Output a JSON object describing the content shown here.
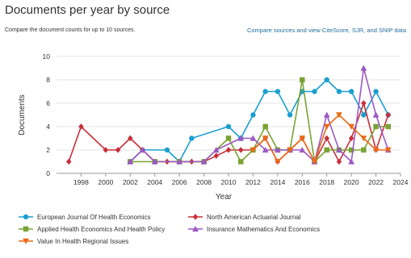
{
  "header": {
    "title": "Documents per year by source",
    "subtitle": "Compare the document counts for up to 10 sources.",
    "compare_link": "Compare sources and view CiteScore, SJR, and SNIP data"
  },
  "chart_data": {
    "type": "line",
    "xlabel": "Year",
    "ylabel": "Documents",
    "xlim": [
      1996,
      2024
    ],
    "ylim": [
      0,
      10
    ],
    "x_ticks": [
      "1998",
      "2000",
      "2002",
      "2004",
      "2006",
      "2008",
      "2010",
      "2012",
      "2014",
      "2016",
      "2018",
      "2020",
      "2022",
      "2024"
    ],
    "y_ticks": [
      "0",
      "2",
      "4",
      "6",
      "8",
      "10"
    ],
    "grid": true,
    "legend_position": "bottom",
    "series": [
      {
        "name": "European Journal Of Health Economics",
        "color": "#1b9fd0",
        "marker": "circle",
        "x": [
          2002,
          2003,
          2005,
          2006,
          2007,
          2010,
          2011,
          2012,
          2013,
          2014,
          2015,
          2016,
          2017,
          2018,
          2019,
          2020,
          2021,
          2022,
          2023
        ],
        "y": [
          1,
          2,
          2,
          1,
          3,
          4,
          3,
          5,
          7,
          7,
          5,
          7,
          7,
          8,
          7,
          7,
          5,
          7,
          5
        ]
      },
      {
        "name": "North American Actuarial Journal",
        "color": "#c8303a",
        "marker": "diamond",
        "x": [
          1997,
          1998,
          2000,
          2001,
          2002,
          2003,
          2004,
          2005,
          2006,
          2007,
          2008,
          2009,
          2010,
          2011,
          2012,
          2013,
          2014,
          2015,
          2016,
          2017,
          2018,
          2019,
          2020,
          2021,
          2022,
          2023
        ],
        "y": [
          1,
          4,
          2,
          2,
          3,
          2,
          1,
          1,
          1,
          1,
          1,
          1.5,
          2,
          2,
          2,
          3,
          1,
          2,
          3,
          1,
          3,
          1,
          3,
          6,
          2,
          5
        ]
      },
      {
        "name": "Applied Health Economics And Health Policy",
        "color": "#7aa335",
        "marker": "square",
        "x": [
          2002,
          2004,
          2006,
          2008,
          2010,
          2011,
          2012,
          2013,
          2014,
          2015,
          2016,
          2017,
          2018,
          2019,
          2020,
          2021,
          2022,
          2023
        ],
        "y": [
          1,
          1,
          1,
          1,
          3,
          1,
          2,
          4,
          2,
          2,
          8,
          1,
          2,
          2,
          2,
          2,
          4,
          4
        ]
      },
      {
        "name": "Insurance Mathematics And Economics",
        "color": "#9b59c4",
        "marker": "triangle",
        "x": [
          2002,
          2003,
          2004,
          2006,
          2008,
          2009,
          2011,
          2012,
          2013,
          2014,
          2015,
          2016,
          2017,
          2018,
          2019,
          2020,
          2021,
          2022,
          2023
        ],
        "y": [
          1,
          2,
          1,
          1,
          1,
          2,
          3,
          3,
          2,
          2,
          2,
          2,
          1,
          5,
          2,
          1,
          9,
          5,
          2
        ]
      },
      {
        "name": "Value In Health Regional Issues",
        "color": "#ea6a16",
        "marker": "triangle-down",
        "x": [
          2012,
          2013,
          2014,
          2015,
          2016,
          2017,
          2018,
          2019,
          2020,
          2021,
          2022,
          2023
        ],
        "y": [
          2,
          3,
          1,
          2,
          3,
          1,
          4,
          5,
          4,
          3,
          2,
          2
        ]
      }
    ]
  }
}
